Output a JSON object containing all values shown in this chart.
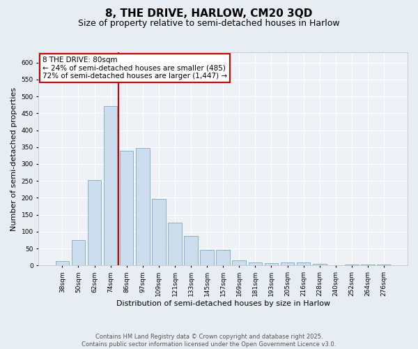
{
  "title": "8, THE DRIVE, HARLOW, CM20 3QD",
  "subtitle": "Size of property relative to semi-detached houses in Harlow",
  "xlabel": "Distribution of semi-detached houses by size in Harlow",
  "ylabel": "Number of semi-detached properties",
  "categories": [
    "38sqm",
    "50sqm",
    "62sqm",
    "74sqm",
    "86sqm",
    "97sqm",
    "109sqm",
    "121sqm",
    "133sqm",
    "145sqm",
    "157sqm",
    "169sqm",
    "181sqm",
    "193sqm",
    "205sqm",
    "216sqm",
    "228sqm",
    "240sqm",
    "252sqm",
    "264sqm",
    "276sqm"
  ],
  "values": [
    13,
    75,
    253,
    472,
    340,
    347,
    197,
    127,
    87,
    46,
    46,
    15,
    9,
    7,
    9,
    9,
    5,
    0,
    2,
    3,
    2
  ],
  "bar_color": "#ccdded",
  "bar_edge_color": "#7aaabf",
  "vline_position": 3.5,
  "vline_color": "#cc0000",
  "annotation_text": "8 THE DRIVE: 80sqm\n← 24% of semi-detached houses are smaller (485)\n72% of semi-detached houses are larger (1,447) →",
  "annotation_box_color": "#ffffff",
  "annotation_box_edge_color": "#cc0000",
  "ylim": [
    0,
    630
  ],
  "yticks": [
    0,
    50,
    100,
    150,
    200,
    250,
    300,
    350,
    400,
    450,
    500,
    550,
    600
  ],
  "footer_text": "Contains HM Land Registry data © Crown copyright and database right 2025.\nContains public sector information licensed under the Open Government Licence v3.0.",
  "bg_color": "#e8edf3",
  "plot_bg_color": "#eef2f7",
  "grid_color": "#ffffff",
  "title_fontsize": 11,
  "subtitle_fontsize": 9,
  "axis_label_fontsize": 8,
  "tick_fontsize": 6.5,
  "annotation_fontsize": 7.5,
  "footer_fontsize": 6
}
